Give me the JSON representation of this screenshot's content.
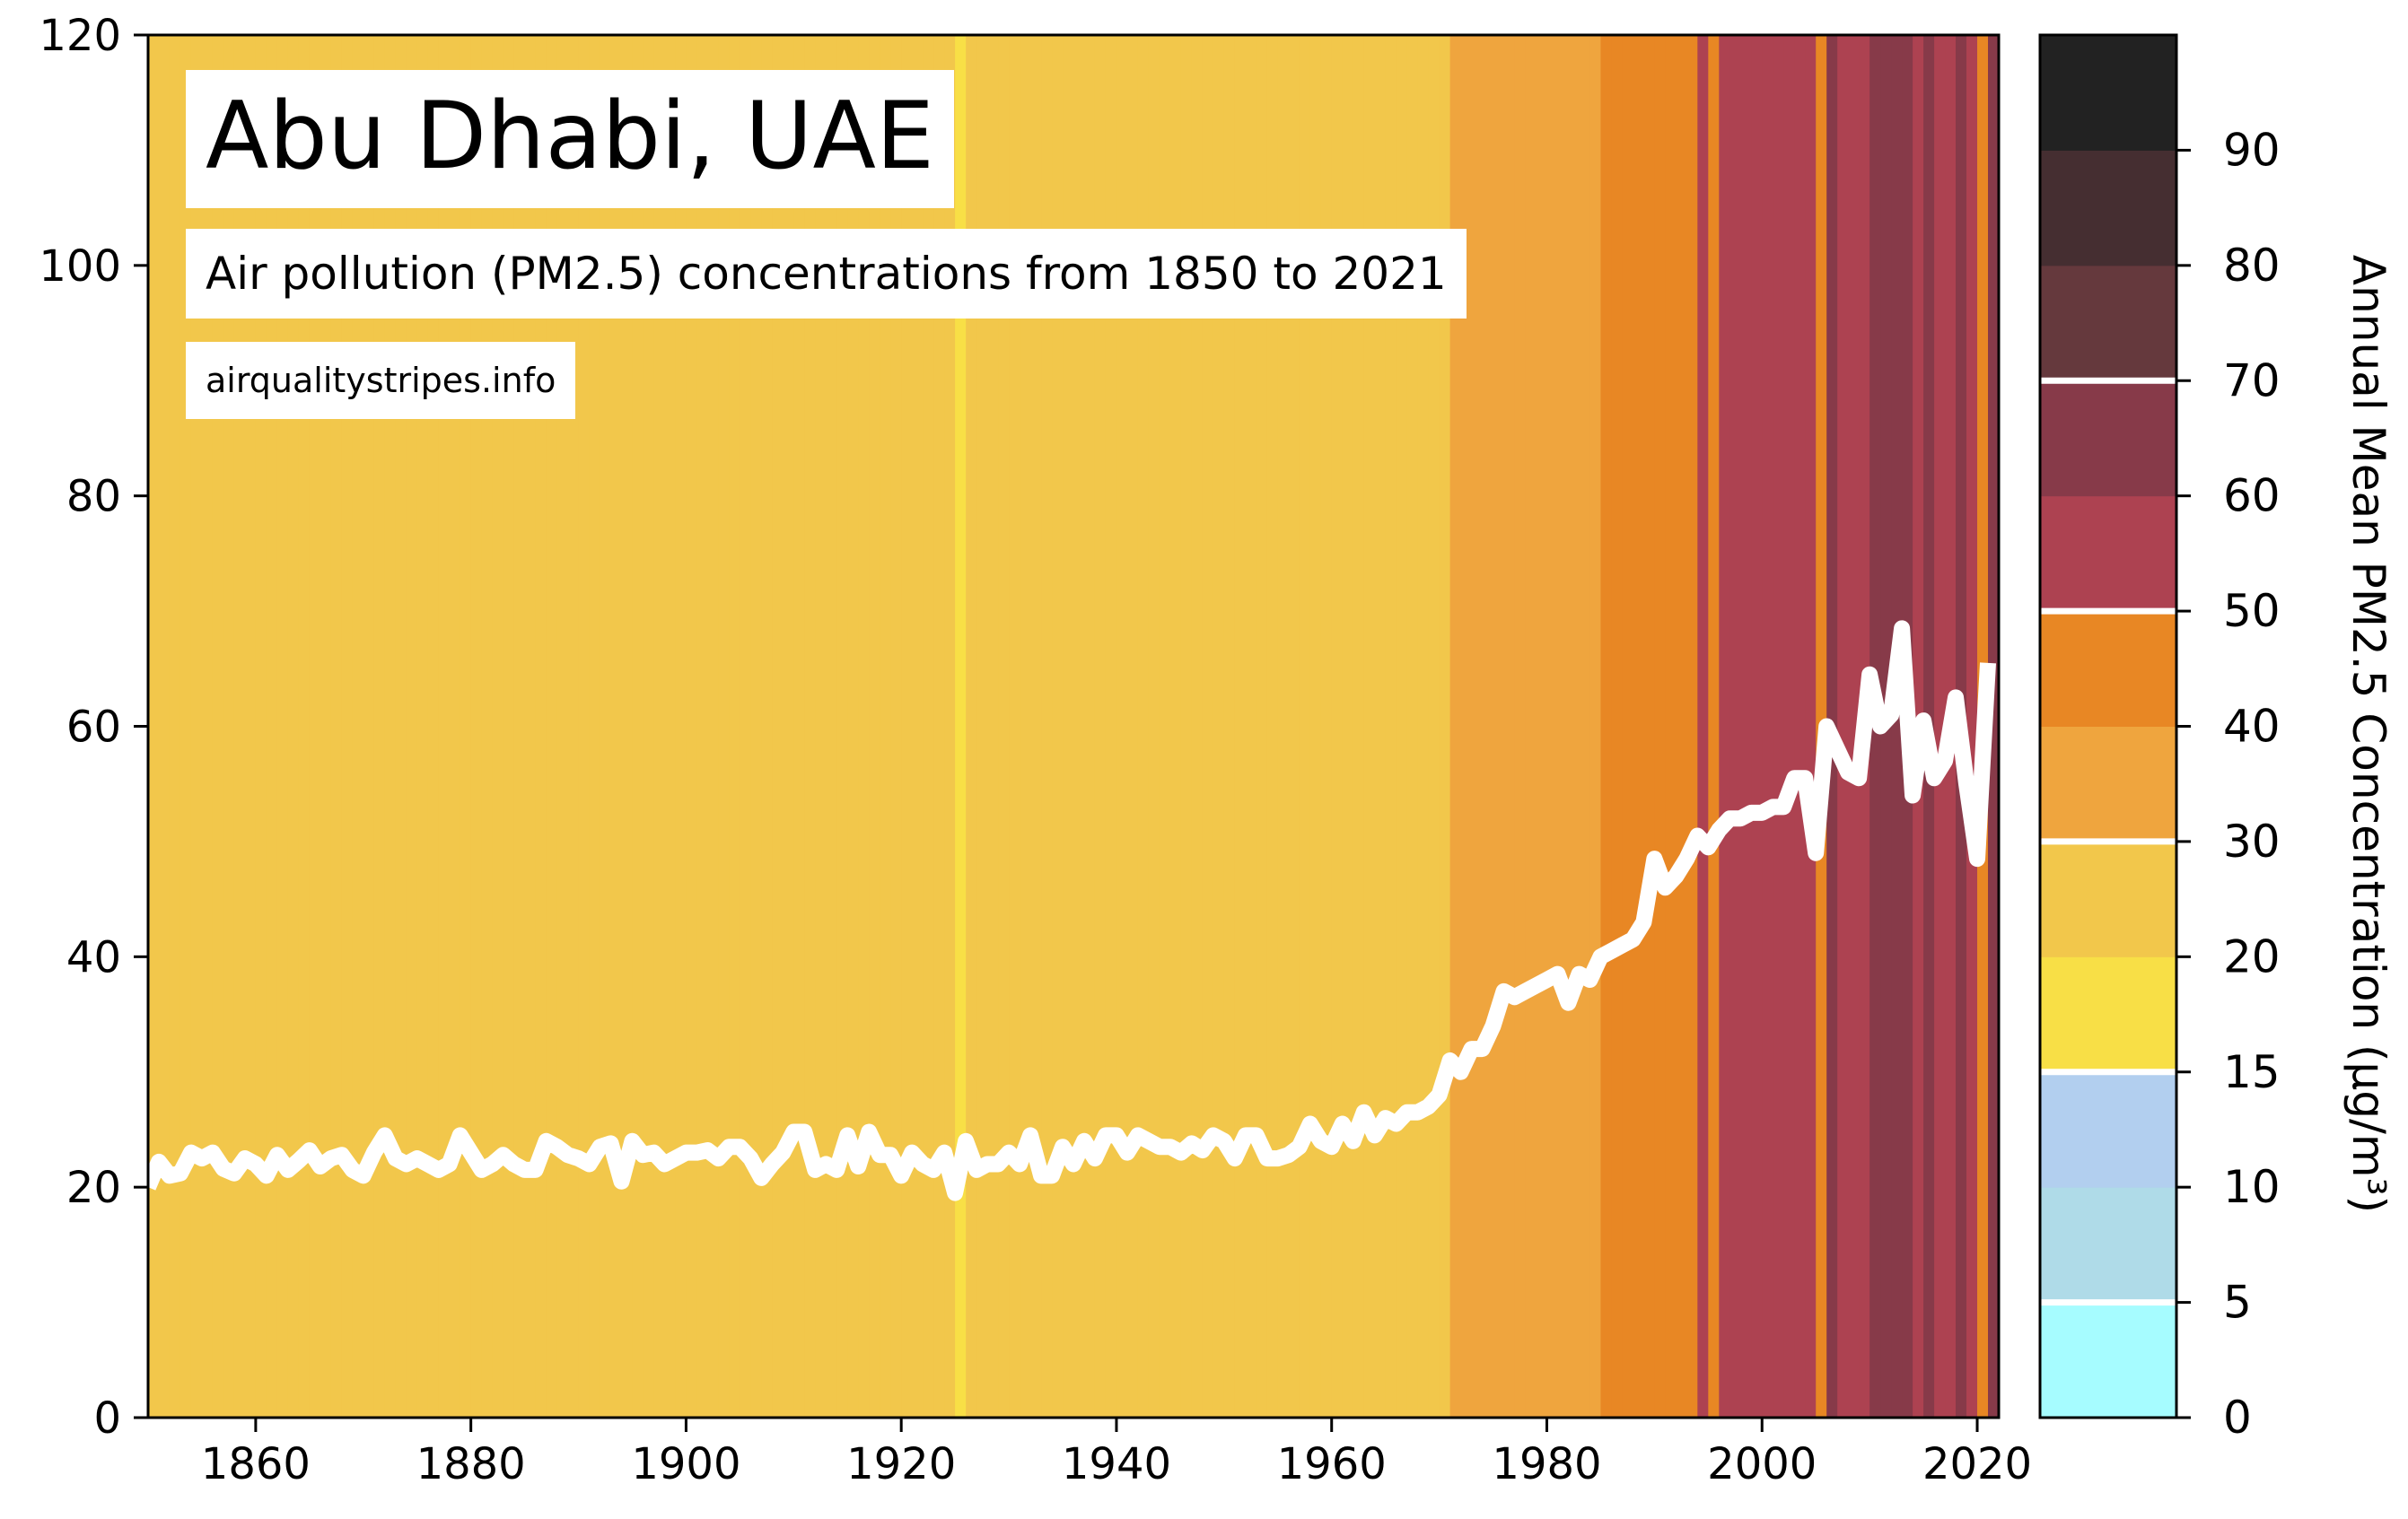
{
  "chart_data": {
    "type": "line",
    "title": "Abu Dhabi, UAE",
    "subtitle": "Air pollution (PM2.5) concentrations from 1850 to 2021",
    "source": "airqualitystripes.info",
    "xlim": [
      1850,
      2022
    ],
    "ylim": [
      0,
      120
    ],
    "x_ticks": [
      1860,
      1880,
      1900,
      1920,
      1940,
      1960,
      1980,
      2000,
      2020
    ],
    "y_ticks": [
      0,
      20,
      40,
      60,
      80,
      100,
      120
    ],
    "background": "stripes colored by each year's annual mean PM2.5 value",
    "series": [
      {
        "color": "#ffffff",
        "x": [
          1850,
          1851,
          1852,
          1853,
          1854,
          1855,
          1856,
          1857,
          1858,
          1859,
          1860,
          1861,
          1862,
          1863,
          1864,
          1865,
          1866,
          1867,
          1868,
          1869,
          1870,
          1871,
          1872,
          1873,
          1874,
          1875,
          1876,
          1877,
          1878,
          1879,
          1880,
          1881,
          1882,
          1883,
          1884,
          1885,
          1886,
          1887,
          1888,
          1889,
          1890,
          1891,
          1892,
          1893,
          1894,
          1895,
          1896,
          1897,
          1898,
          1899,
          1900,
          1901,
          1902,
          1903,
          1904,
          1905,
          1906,
          1907,
          1908,
          1909,
          1910,
          1911,
          1912,
          1913,
          1914,
          1915,
          1916,
          1917,
          1918,
          1919,
          1920,
          1921,
          1922,
          1923,
          1924,
          1925,
          1926,
          1927,
          1928,
          1929,
          1930,
          1931,
          1932,
          1933,
          1934,
          1935,
          1936,
          1937,
          1938,
          1939,
          1940,
          1941,
          1942,
          1943,
          1944,
          1945,
          1946,
          1947,
          1948,
          1949,
          1950,
          1951,
          1952,
          1953,
          1954,
          1955,
          1956,
          1957,
          1958,
          1959,
          1960,
          1961,
          1962,
          1963,
          1964,
          1965,
          1966,
          1967,
          1968,
          1969,
          1970,
          1971,
          1972,
          1973,
          1974,
          1975,
          1976,
          1977,
          1978,
          1979,
          1980,
          1981,
          1982,
          1983,
          1984,
          1985,
          1986,
          1987,
          1988,
          1989,
          1990,
          1991,
          1992,
          1993,
          1994,
          1995,
          1996,
          1997,
          1998,
          1999,
          2000,
          2001,
          2002,
          2003,
          2004,
          2005,
          2006,
          2007,
          2008,
          2009,
          2010,
          2011,
          2012,
          2013,
          2014,
          2015,
          2016,
          2017,
          2018,
          2019,
          2020,
          2021
        ],
        "values": [
          20.0,
          22.2,
          21.0,
          21.2,
          23.0,
          22.5,
          23.0,
          21.6,
          21.2,
          22.5,
          22.0,
          21.0,
          22.8,
          21.5,
          22.3,
          23.2,
          21.8,
          22.5,
          22.8,
          21.5,
          21.0,
          23.0,
          24.5,
          22.5,
          22.0,
          22.5,
          22.0,
          21.5,
          22.0,
          24.5,
          23.0,
          21.5,
          22.0,
          22.8,
          22.0,
          21.5,
          21.5,
          24.0,
          23.5,
          22.8,
          22.5,
          22.0,
          23.5,
          23.8,
          20.5,
          24.0,
          22.8,
          23.0,
          22.0,
          22.5,
          23.0,
          23.0,
          23.2,
          22.5,
          23.5,
          23.5,
          22.5,
          20.8,
          22.0,
          23.0,
          24.8,
          24.8,
          21.5,
          22.0,
          21.5,
          24.5,
          21.8,
          24.8,
          22.8,
          22.8,
          21.0,
          23.0,
          22.0,
          21.5,
          23.0,
          19.5,
          24.0,
          21.5,
          22.0,
          22.0,
          23.0,
          22.0,
          24.5,
          21.0,
          21.0,
          23.5,
          22.0,
          24.0,
          22.5,
          24.5,
          24.5,
          23.0,
          24.5,
          24.0,
          23.5,
          23.5,
          23.0,
          23.8,
          23.2,
          24.5,
          24.0,
          22.5,
          24.5,
          24.5,
          22.5,
          22.5,
          22.8,
          23.5,
          25.5,
          24.0,
          23.5,
          25.5,
          24.0,
          26.5,
          24.5,
          26.0,
          25.5,
          26.5,
          26.5,
          27.0,
          28.0,
          31.0,
          30.0,
          32.0,
          32.0,
          34.0,
          37.0,
          36.5,
          37.0,
          37.5,
          38.0,
          38.5,
          36.0,
          38.5,
          38.0,
          40.0,
          40.5,
          41.0,
          41.5,
          43.0,
          48.5,
          46.0,
          47.0,
          48.5,
          50.5,
          49.5,
          51.0,
          52.0,
          52.0,
          52.5,
          52.5,
          53.0,
          53.0,
          55.5,
          55.5,
          49.0,
          60.0,
          58.0,
          56.0,
          55.5,
          64.5,
          60.0,
          61.0,
          68.5,
          54.0,
          60.5,
          55.5,
          57.0,
          62.5,
          55.0,
          48.5,
          65.5
        ]
      }
    ],
    "colorbar": {
      "label": "Annual Mean PM2.5 Concentration (µg/m³)",
      "ticks": [
        0,
        5,
        10,
        15,
        20,
        30,
        40,
        50,
        60,
        70,
        80,
        90
      ],
      "bins": [
        {
          "from": 0,
          "to": 5,
          "color": "#a6fcff"
        },
        {
          "from": 5,
          "to": 10,
          "color": "#afdbe8"
        },
        {
          "from": 10,
          "to": 15,
          "color": "#b2cfef"
        },
        {
          "from": 15,
          "to": 20,
          "color": "#f8df46"
        },
        {
          "from": 20,
          "to": 30,
          "color": "#f2c74b"
        },
        {
          "from": 30,
          "to": 40,
          "color": "#efa53e"
        },
        {
          "from": 40,
          "to": 50,
          "color": "#e88724"
        },
        {
          "from": 50,
          "to": 60,
          "color": "#ad4251"
        },
        {
          "from": 60,
          "to": 70,
          "color": "#873a49"
        },
        {
          "from": 70,
          "to": 80,
          "color": "#65393d"
        },
        {
          "from": 80,
          "to": 90,
          "color": "#452e31"
        },
        {
          "from": 90,
          "to": 100,
          "color": "#222222"
        }
      ],
      "separators_at": [
        5,
        15,
        30,
        50,
        70
      ]
    }
  }
}
